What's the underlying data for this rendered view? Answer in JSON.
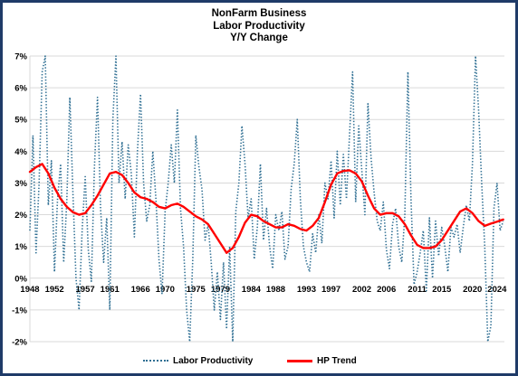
{
  "chart_data": {
    "type": "line",
    "title": "NonFarm Business",
    "subtitle_lines": [
      "Labor Productivity",
      "Y/Y Change"
    ],
    "xlabel": "",
    "ylabel": "",
    "xlim": [
      1948,
      2025.2
    ],
    "ylim": [
      -2,
      7
    ],
    "y_ticks": [
      -2,
      -1,
      0,
      1,
      2,
      3,
      4,
      5,
      6,
      7
    ],
    "y_tick_labels": [
      "-2%",
      "-1%",
      "0%",
      "1%",
      "2%",
      "3%",
      "4%",
      "5%",
      "6%",
      "7%"
    ],
    "x_ticks": [
      1948,
      1952,
      1957,
      1961,
      1966,
      1970,
      1975,
      1979,
      1984,
      1988,
      1993,
      1997,
      2002,
      2006,
      2011,
      2015,
      2020,
      2024
    ],
    "x_tick_labels": [
      "1948",
      "1952",
      "1957",
      "1961",
      "1966",
      "1970",
      "1975",
      "1979",
      "1984",
      "1988",
      "1993",
      "1997",
      "2002",
      "2006",
      "2011",
      "2015",
      "2020",
      "2024"
    ],
    "grid": true,
    "legend_position": "bottom",
    "series": [
      {
        "name": "Labor Productivity",
        "color": "#2f6f93",
        "style": "dotted",
        "x": [
          1948.0,
          1948.5,
          1949.0,
          1949.5,
          1950.0,
          1950.5,
          1951.0,
          1951.5,
          1952.0,
          1952.5,
          1953.0,
          1953.5,
          1954.0,
          1954.5,
          1955.0,
          1955.5,
          1956.0,
          1956.5,
          1957.0,
          1957.5,
          1958.0,
          1958.5,
          1959.0,
          1959.5,
          1960.0,
          1960.5,
          1961.0,
          1961.5,
          1962.0,
          1962.5,
          1963.0,
          1963.5,
          1964.0,
          1964.5,
          1965.0,
          1965.5,
          1966.0,
          1966.5,
          1967.0,
          1967.5,
          1968.0,
          1968.5,
          1969.0,
          1969.5,
          1970.0,
          1970.5,
          1971.0,
          1971.5,
          1972.0,
          1972.5,
          1973.0,
          1973.5,
          1974.0,
          1974.5,
          1975.0,
          1975.5,
          1976.0,
          1976.5,
          1977.0,
          1977.5,
          1978.0,
          1978.5,
          1979.0,
          1979.5,
          1980.0,
          1980.5,
          1981.0,
          1981.5,
          1982.0,
          1982.5,
          1983.0,
          1983.5,
          1984.0,
          1984.5,
          1985.0,
          1985.5,
          1986.0,
          1986.5,
          1987.0,
          1987.5,
          1988.0,
          1988.5,
          1989.0,
          1989.5,
          1990.0,
          1990.5,
          1991.0,
          1991.5,
          1992.0,
          1992.5,
          1993.0,
          1993.5,
          1994.0,
          1994.5,
          1995.0,
          1995.5,
          1996.0,
          1996.5,
          1997.0,
          1997.5,
          1998.0,
          1998.5,
          1999.0,
          1999.5,
          2000.0,
          2000.5,
          2001.0,
          2001.5,
          2002.0,
          2002.5,
          2003.0,
          2003.5,
          2004.0,
          2004.5,
          2005.0,
          2005.5,
          2006.0,
          2006.5,
          2007.0,
          2007.5,
          2008.0,
          2008.5,
          2009.0,
          2009.5,
          2010.0,
          2010.5,
          2011.0,
          2011.5,
          2012.0,
          2012.5,
          2013.0,
          2013.5,
          2014.0,
          2014.5,
          2015.0,
          2015.5,
          2016.0,
          2016.5,
          2017.0,
          2017.5,
          2018.0,
          2018.5,
          2019.0,
          2019.5,
          2020.0,
          2020.5,
          2021.0,
          2021.5,
          2022.0,
          2022.5,
          2023.0,
          2023.5,
          2024.0,
          2024.5,
          2025.0
        ],
        "values": [
          1.5,
          4.5,
          0.8,
          3.0,
          6.5,
          7.0,
          2.3,
          3.7,
          0.2,
          2.5,
          3.6,
          0.5,
          2.4,
          5.7,
          2.7,
          0.0,
          -1.0,
          1.5,
          3.2,
          0.9,
          -0.1,
          3.5,
          5.7,
          2.2,
          0.5,
          1.9,
          -1.0,
          5.0,
          7.0,
          3.0,
          4.3,
          2.5,
          4.2,
          3.3,
          1.3,
          4.0,
          5.8,
          3.0,
          1.8,
          2.3,
          4.0,
          2.5,
          0.6,
          -0.5,
          2.1,
          3.0,
          4.2,
          3.0,
          5.3,
          2.2,
          1.0,
          -1.0,
          -2.0,
          0.6,
          4.5,
          3.5,
          2.8,
          1.2,
          1.7,
          0.5,
          -1.0,
          0.2,
          -1.3,
          0.5,
          -1.6,
          1.0,
          -2.0,
          2.1,
          3.0,
          4.8,
          3.6,
          1.9,
          2.5,
          0.6,
          1.6,
          3.6,
          1.2,
          2.2,
          1.0,
          0.3,
          2.0,
          1.5,
          2.1,
          0.6,
          1.0,
          2.8,
          3.6,
          5.0,
          2.5,
          1.0,
          0.5,
          0.2,
          1.4,
          0.8,
          2.0,
          1.1,
          3.0,
          2.5,
          3.7,
          1.9,
          4.0,
          2.3,
          3.9,
          2.5,
          4.5,
          6.5,
          2.4,
          4.8,
          3.4,
          2.0,
          5.5,
          3.8,
          2.7,
          1.8,
          1.5,
          2.4,
          0.9,
          0.3,
          1.7,
          2.2,
          1.0,
          0.5,
          2.0,
          6.5,
          2.5,
          -0.2,
          0.2,
          0.8,
          1.5,
          -0.4,
          1.9,
          0.0,
          1.8,
          0.7,
          1.6,
          1.0,
          0.2,
          1.6,
          1.3,
          1.7,
          0.8,
          1.6,
          2.3,
          1.8,
          3.6,
          7.0,
          5.3,
          3.0,
          1.0,
          -2.0,
          -1.5,
          2.2,
          3.0,
          1.5,
          1.8
        ]
      },
      {
        "name": "HP Trend",
        "color": "#ff0000",
        "style": "solid",
        "x": [
          1948.0,
          1949.0,
          1950.0,
          1951.0,
          1952.0,
          1953.0,
          1954.0,
          1955.0,
          1956.0,
          1957.0,
          1958.0,
          1959.0,
          1960.0,
          1961.0,
          1962.0,
          1963.0,
          1964.0,
          1965.0,
          1966.0,
          1967.0,
          1968.0,
          1969.0,
          1970.0,
          1971.0,
          1972.0,
          1973.0,
          1974.0,
          1975.0,
          1976.0,
          1977.0,
          1978.0,
          1979.0,
          1980.0,
          1981.0,
          1982.0,
          1983.0,
          1984.0,
          1985.0,
          1986.0,
          1987.0,
          1988.0,
          1989.0,
          1990.0,
          1991.0,
          1992.0,
          1993.0,
          1994.0,
          1995.0,
          1996.0,
          1997.0,
          1998.0,
          1999.0,
          2000.0,
          2001.0,
          2002.0,
          2003.0,
          2004.0,
          2005.0,
          2006.0,
          2007.0,
          2008.0,
          2009.0,
          2010.0,
          2011.0,
          2012.0,
          2013.0,
          2014.0,
          2015.0,
          2016.0,
          2017.0,
          2018.0,
          2019.0,
          2020.0,
          2021.0,
          2022.0,
          2023.0,
          2024.0,
          2025.0
        ],
        "values": [
          3.35,
          3.5,
          3.6,
          3.3,
          2.85,
          2.5,
          2.25,
          2.08,
          2.0,
          2.05,
          2.3,
          2.6,
          2.95,
          3.3,
          3.35,
          3.25,
          3.0,
          2.7,
          2.55,
          2.5,
          2.4,
          2.25,
          2.2,
          2.3,
          2.35,
          2.25,
          2.1,
          1.95,
          1.85,
          1.7,
          1.4,
          1.1,
          0.8,
          0.95,
          1.3,
          1.75,
          2.0,
          1.95,
          1.8,
          1.7,
          1.6,
          1.6,
          1.7,
          1.65,
          1.55,
          1.5,
          1.65,
          1.9,
          2.4,
          2.95,
          3.3,
          3.38,
          3.4,
          3.3,
          3.05,
          2.6,
          2.2,
          2.0,
          2.05,
          2.05,
          1.95,
          1.7,
          1.35,
          1.05,
          0.95,
          0.95,
          1.0,
          1.2,
          1.5,
          1.8,
          2.1,
          2.2,
          2.05,
          1.8,
          1.65,
          1.72,
          1.78,
          1.85
        ]
      }
    ]
  }
}
